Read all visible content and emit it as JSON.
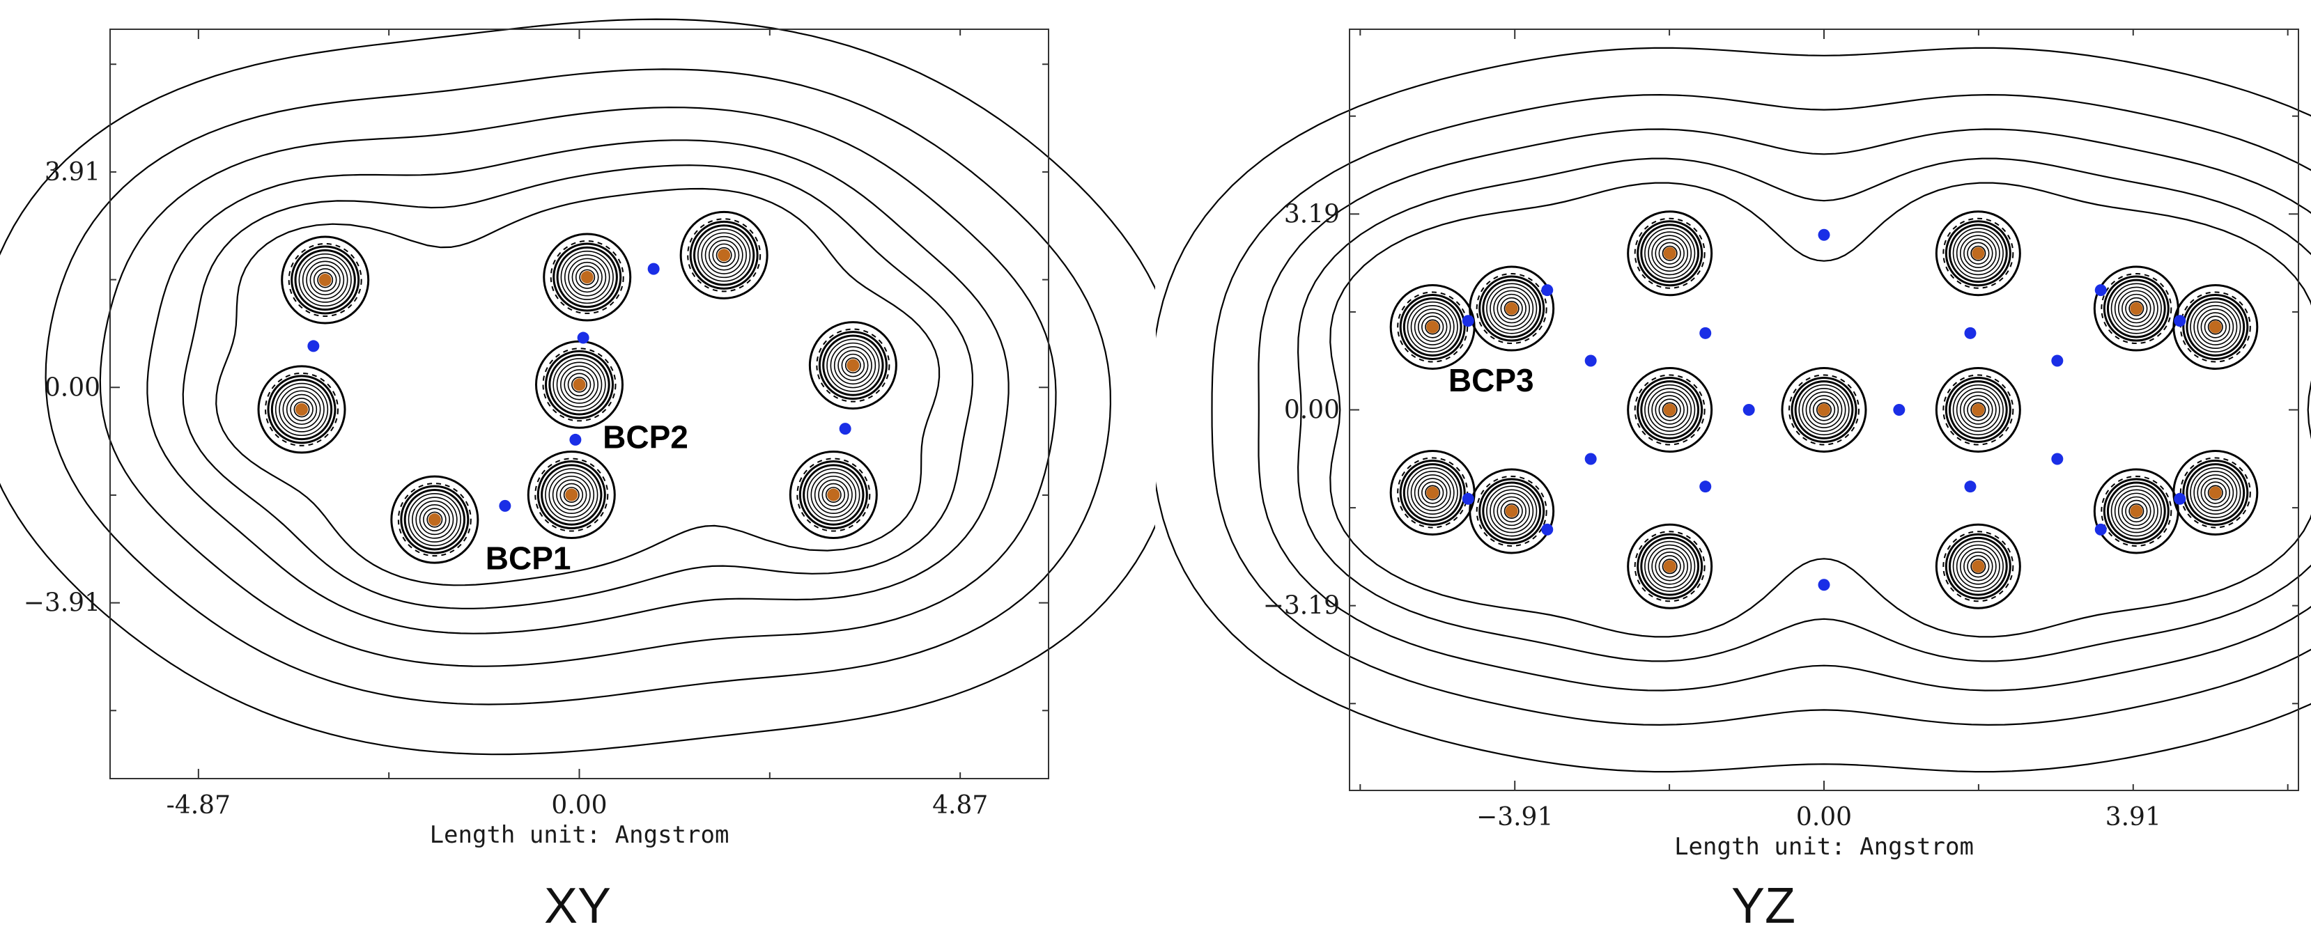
{
  "figure": {
    "captions": [
      "XY",
      "YZ"
    ]
  },
  "chart_data": [
    {
      "type": "contour",
      "plane": "XY",
      "caption": "XY",
      "xlabel": "Length unit: Angstrom",
      "ylabel": "",
      "xlim": [
        -6.0,
        6.0
      ],
      "ylim": [
        -7.1,
        6.5
      ],
      "x_ticks": [
        -4.87,
        0.0,
        4.87
      ],
      "y_ticks": [
        3.91,
        0.0,
        -3.91
      ],
      "x_tick_labels": [
        "-4.87",
        "0.00",
        "4.87"
      ],
      "y_tick_labels": [
        "3.91",
        "0.00",
        "−3.91"
      ],
      "grid": false,
      "colors": {
        "nucleus": "#c06a1e",
        "bcp": "#1a2ee6",
        "contour": "#000000"
      },
      "nuclei": [
        {
          "x": -3.25,
          "y": 1.95
        },
        {
          "x": -3.55,
          "y": -0.4
        },
        {
          "x": -1.85,
          "y": -2.4
        },
        {
          "x": 0.1,
          "y": 2.0
        },
        {
          "x": 0.0,
          "y": 0.05
        },
        {
          "x": -0.1,
          "y": -1.95
        },
        {
          "x": 1.85,
          "y": 2.4
        },
        {
          "x": 3.5,
          "y": 0.4
        },
        {
          "x": 3.25,
          "y": -1.95
        }
      ],
      "bcps": [
        {
          "x": -3.4,
          "y": 0.75
        },
        {
          "x": -0.95,
          "y": -2.15
        },
        {
          "x": 0.05,
          "y": 0.9
        },
        {
          "x": -0.05,
          "y": -0.95
        },
        {
          "x": 0.95,
          "y": 2.15
        },
        {
          "x": 3.4,
          "y": -0.75
        }
      ],
      "annotations": [
        {
          "text": "BCP2",
          "x": 0.3,
          "y": -1.1
        },
        {
          "text": "BCP1",
          "x": -1.2,
          "y": -3.3
        }
      ]
    },
    {
      "type": "contour",
      "plane": "YZ",
      "caption": "YZ",
      "xlabel": "Length unit: Angstrom",
      "ylabel": "",
      "xlim": [
        -6.0,
        6.0
      ],
      "ylim": [
        -6.2,
        6.2
      ],
      "x_ticks": [
        -3.91,
        0.0,
        3.91
      ],
      "y_ticks": [
        3.19,
        0.0,
        -3.19
      ],
      "x_tick_labels": [
        "−3.91",
        "0.00",
        "3.91"
      ],
      "y_tick_labels": [
        "3.19",
        "0.00",
        "−3.19"
      ],
      "grid": false,
      "colors": {
        "nucleus": "#c06a1e",
        "bcp": "#1a2ee6",
        "contour": "#000000"
      },
      "nuclei": [
        {
          "x": -1.95,
          "y": 2.55
        },
        {
          "x": 1.95,
          "y": 2.55
        },
        {
          "x": -3.95,
          "y": 1.65
        },
        {
          "x": 3.95,
          "y": 1.65
        },
        {
          "x": -1.95,
          "y": 0.0
        },
        {
          "x": 0.0,
          "y": 0.0
        },
        {
          "x": 1.95,
          "y": 0.0
        },
        {
          "x": -3.95,
          "y": -1.65
        },
        {
          "x": 3.95,
          "y": -1.65
        },
        {
          "x": -1.95,
          "y": -2.55
        },
        {
          "x": 1.95,
          "y": -2.55
        },
        {
          "x": -4.95,
          "y": 1.35
        },
        {
          "x": 4.95,
          "y": 1.35
        },
        {
          "x": -4.95,
          "y": -1.35
        },
        {
          "x": 4.95,
          "y": -1.35
        }
      ],
      "bcps": [
        {
          "x": 0.0,
          "y": 2.85
        },
        {
          "x": 0.0,
          "y": -2.85
        },
        {
          "x": -3.5,
          "y": 1.95
        },
        {
          "x": 3.5,
          "y": 1.95
        },
        {
          "x": -4.5,
          "y": 1.45
        },
        {
          "x": 4.5,
          "y": 1.45
        },
        {
          "x": -1.5,
          "y": 1.25
        },
        {
          "x": 1.85,
          "y": 1.25
        },
        {
          "x": -2.95,
          "y": 0.8
        },
        {
          "x": 2.95,
          "y": 0.8
        },
        {
          "x": -0.95,
          "y": 0.0
        },
        {
          "x": 0.95,
          "y": 0.0
        },
        {
          "x": -2.95,
          "y": -0.8
        },
        {
          "x": 2.95,
          "y": -0.8
        },
        {
          "x": -1.5,
          "y": -1.25
        },
        {
          "x": 1.85,
          "y": -1.25
        },
        {
          "x": -4.5,
          "y": -1.45
        },
        {
          "x": 4.5,
          "y": -1.45
        },
        {
          "x": -3.5,
          "y": -1.95
        },
        {
          "x": 3.5,
          "y": -1.95
        }
      ],
      "annotations": [
        {
          "text": "BCP3",
          "x": -4.75,
          "y": 0.3
        }
      ]
    }
  ]
}
